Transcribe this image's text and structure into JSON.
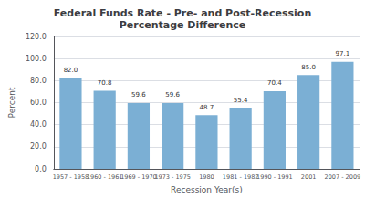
{
  "chart_data": {
    "type": "bar",
    "title": "Federal Funds Rate - Pre- and Post-Recession\nPercentage Difference",
    "xlabel": "Recession Year(s)",
    "ylabel": "Percent",
    "categories": [
      "1957 - 1958",
      "1960 - 1961",
      "1969 - 1970",
      "1973 - 1975",
      "1980",
      "1981 - 1982",
      "1990 - 1991",
      "2001",
      "2007 - 2009"
    ],
    "values": [
      82.0,
      70.8,
      59.6,
      59.6,
      48.7,
      55.4,
      70.4,
      85.0,
      97.1
    ],
    "value_labels": [
      "82.0",
      "70.8",
      "59.6",
      "59.6",
      "48.7",
      "55.4",
      "70.4",
      "85.0",
      "97.1"
    ],
    "data_labels": true,
    "color": "#7BAFD4",
    "ylim": [
      0,
      120
    ],
    "yticks": [
      {
        "value": 0,
        "label": "0.0"
      },
      {
        "value": 20,
        "label": "20.0"
      },
      {
        "value": 40,
        "label": "40.0"
      },
      {
        "value": 60,
        "label": "60.0"
      },
      {
        "value": 80,
        "label": "80.0"
      },
      {
        "value": 100,
        "label": "100.0"
      },
      {
        "value": 120,
        "label": "120.0"
      }
    ],
    "grid": true
  }
}
